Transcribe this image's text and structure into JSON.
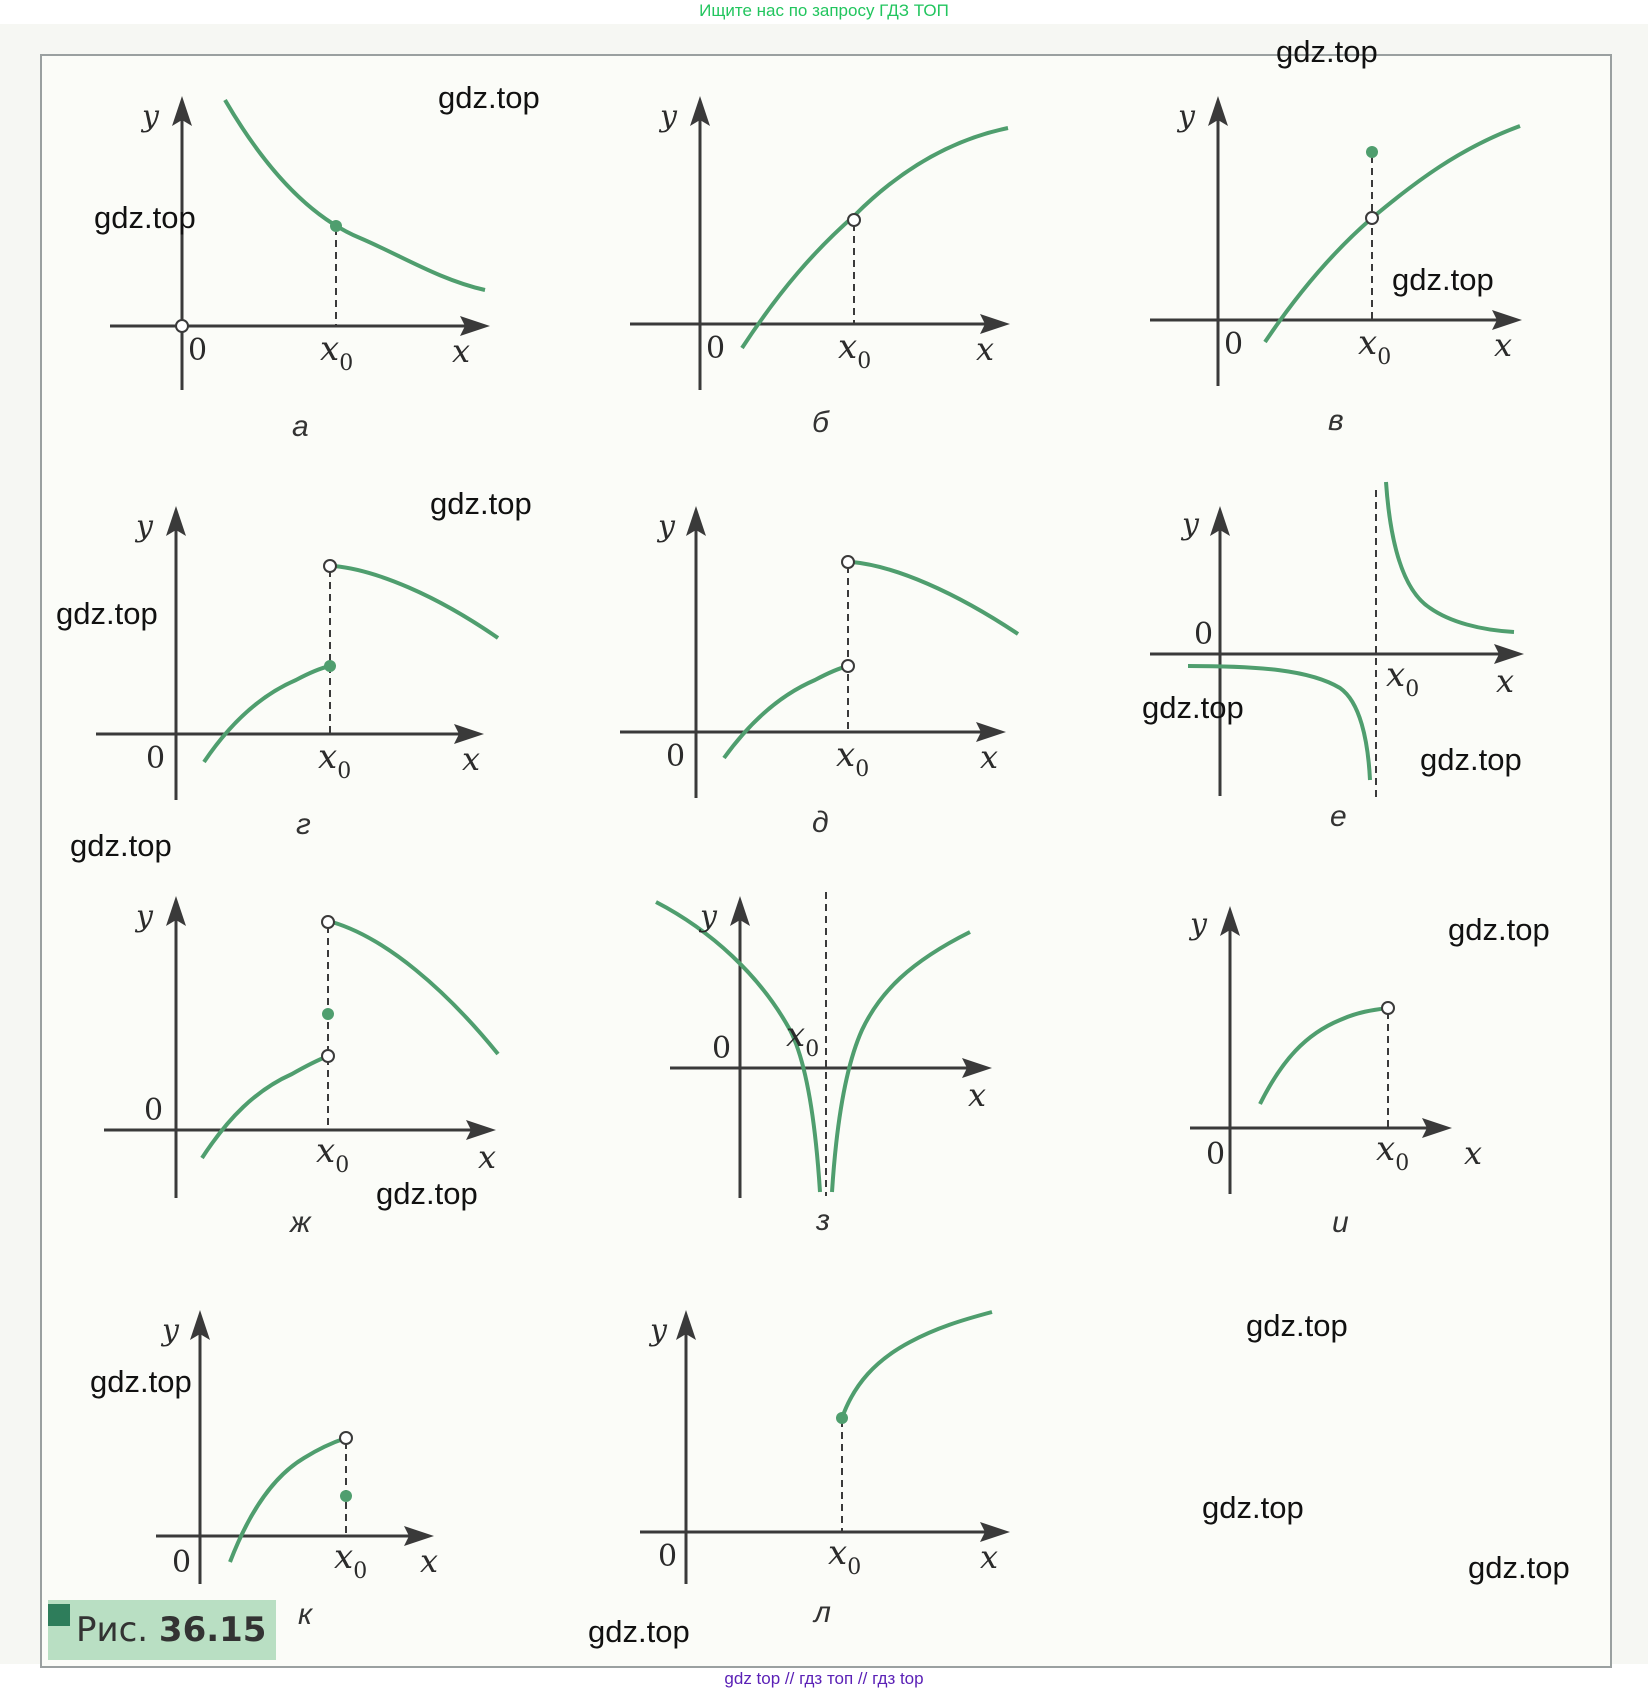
{
  "banner_top": "Ищите нас по запросу ГДЗ ТОП",
  "banner_bottom": "gdz top  //  гдз топ  //  гдз top",
  "figure": {
    "prefix": "Рис.",
    "number": "36.15"
  },
  "axis_labels": {
    "x": "x",
    "y": "y",
    "origin": "0",
    "x0": "x",
    "x0_sub": "0"
  },
  "panels": [
    {
      "id": "a",
      "caption": "а"
    },
    {
      "id": "b",
      "caption": "б"
    },
    {
      "id": "v",
      "caption": "в"
    },
    {
      "id": "g",
      "caption": "г"
    },
    {
      "id": "d",
      "caption": "д"
    },
    {
      "id": "e",
      "caption": "е"
    },
    {
      "id": "zh",
      "caption": "ж"
    },
    {
      "id": "z",
      "caption": "з"
    },
    {
      "id": "i",
      "caption": "и"
    },
    {
      "id": "k",
      "caption": "к"
    },
    {
      "id": "l",
      "caption": "л"
    }
  ],
  "watermark": "gdz.top",
  "colors": {
    "curve": "#4f9e6e",
    "axis": "#3a3a3a",
    "banner_top": "#22c55e",
    "banner_bottom": "#5b21b6"
  }
}
